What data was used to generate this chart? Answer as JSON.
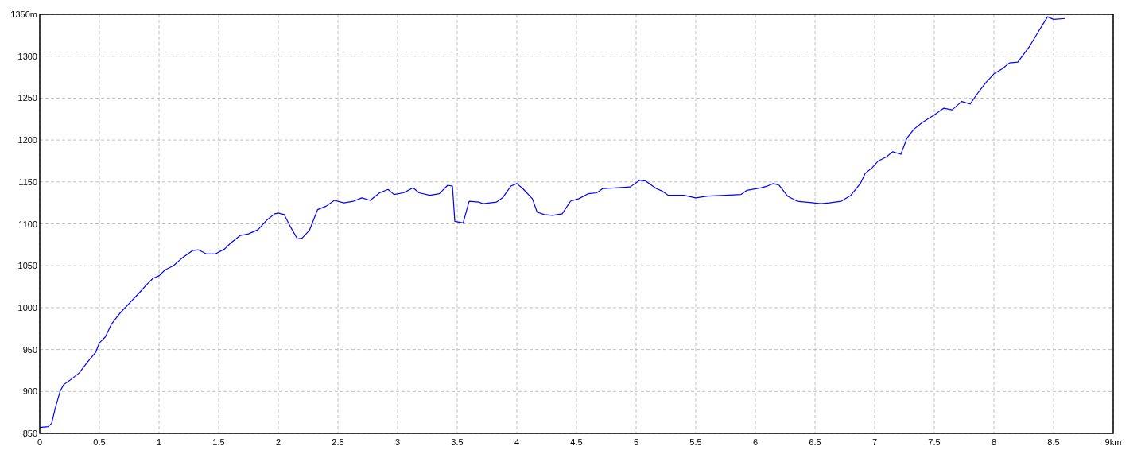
{
  "chart_data": {
    "type": "line",
    "x": [
      0,
      0.07,
      0.1,
      0.13,
      0.17,
      0.2,
      0.25,
      0.33,
      0.4,
      0.47,
      0.5,
      0.55,
      0.6,
      0.67,
      0.75,
      0.83,
      0.9,
      0.95,
      1.0,
      1.05,
      1.12,
      1.2,
      1.28,
      1.33,
      1.4,
      1.47,
      1.55,
      1.6,
      1.68,
      1.75,
      1.83,
      1.9,
      1.97,
      2.0,
      2.05,
      2.1,
      2.16,
      2.2,
      2.26,
      2.33,
      2.4,
      2.47,
      2.55,
      2.63,
      2.7,
      2.77,
      2.85,
      2.92,
      2.97,
      3.05,
      3.13,
      3.18,
      3.27,
      3.35,
      3.42,
      3.46,
      3.48,
      3.55,
      3.6,
      3.68,
      3.72,
      3.83,
      3.88,
      3.95,
      4.0,
      4.05,
      4.13,
      4.17,
      4.23,
      4.3,
      4.38,
      4.45,
      4.52,
      4.6,
      4.67,
      4.72,
      4.85,
      4.95,
      5.03,
      5.08,
      5.17,
      5.22,
      5.27,
      5.4,
      5.5,
      5.6,
      5.75,
      5.88,
      5.93,
      6.05,
      6.1,
      6.15,
      6.2,
      6.27,
      6.35,
      6.55,
      6.62,
      6.72,
      6.8,
      6.88,
      6.92,
      6.98,
      7.03,
      7.1,
      7.15,
      7.22,
      7.27,
      7.33,
      7.4,
      7.5,
      7.58,
      7.65,
      7.73,
      7.8,
      7.87,
      7.93,
      8.0,
      8.07,
      8.13,
      8.2,
      8.3,
      8.38,
      8.45,
      8.5,
      8.6
    ],
    "series": [
      {
        "color": "#0000ff",
        "values": [
          857,
          858,
          862,
          880,
          900,
          908,
          913,
          922,
          935,
          947,
          958,
          965,
          980,
          993,
          1005,
          1017,
          1028,
          1035,
          1038,
          1045,
          1050,
          1060,
          1068,
          1069,
          1064,
          1064,
          1070,
          1077,
          1086,
          1088,
          1093,
          1104,
          1112,
          1113,
          1111,
          1097,
          1082,
          1083,
          1092,
          1117,
          1121,
          1128,
          1125,
          1127,
          1131,
          1128,
          1137,
          1141,
          1135,
          1137,
          1143,
          1137,
          1134,
          1136,
          1146,
          1145,
          1103,
          1101,
          1127,
          1126,
          1124,
          1126,
          1131,
          1145,
          1148,
          1142,
          1130,
          1114,
          1111,
          1110,
          1112,
          1127,
          1130,
          1136,
          1137,
          1142,
          1143,
          1144,
          1152,
          1151,
          1142,
          1139,
          1134,
          1134,
          1131,
          1133,
          1134,
          1135,
          1140,
          1143,
          1145,
          1148,
          1146,
          1133,
          1127,
          1124,
          1125,
          1127,
          1134,
          1148,
          1160,
          1167,
          1175,
          1180,
          1186,
          1183,
          1202,
          1213,
          1221,
          1230,
          1238,
          1236,
          1246,
          1243,
          1257,
          1268,
          1279,
          1285,
          1292,
          1293,
          1312,
          1331,
          1347,
          1344,
          1345
        ]
      }
    ],
    "xlim": [
      0,
      9
    ],
    "xticks": [
      0,
      0.5,
      1,
      1.5,
      2,
      2.5,
      3,
      3.5,
      4,
      4.5,
      5,
      5.5,
      6,
      6.5,
      7,
      7.5,
      8,
      8.5,
      {
        "value": 9,
        "label": "9km"
      }
    ],
    "ylim": [
      850,
      1350
    ],
    "yticks": [
      850,
      900,
      950,
      1000,
      1050,
      1100,
      1150,
      1200,
      1250,
      1300,
      {
        "value": 1350,
        "label": "1350m"
      }
    ],
    "grid": true,
    "line_style": "solid",
    "marker": "none"
  }
}
